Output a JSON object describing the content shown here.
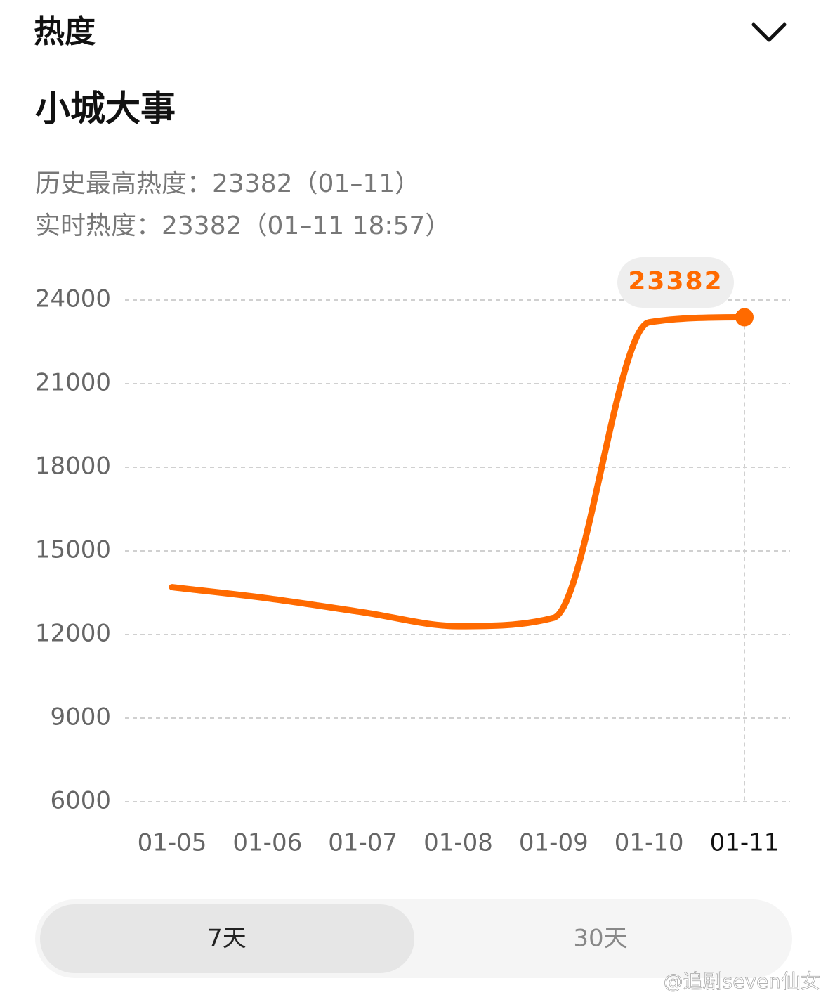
{
  "header": {
    "title": "热度"
  },
  "topic": {
    "title": "小城大事",
    "record_line": "历史最高热度：23382（01–11）",
    "realtime_line": "实时热度：23382（01–11 18:57）"
  },
  "chart_data": {
    "type": "line",
    "categories": [
      "01-05",
      "01-06",
      "01-07",
      "01-08",
      "01-09",
      "01-10",
      "01-11"
    ],
    "values": [
      13700,
      13300,
      12800,
      12300,
      12600,
      23200,
      23382
    ],
    "color": "#ff6a00",
    "ylim": [
      6000,
      24000
    ],
    "yticks": [
      6000,
      9000,
      12000,
      15000,
      18000,
      21000,
      24000
    ],
    "grid": true
  },
  "tabs": [
    "7天",
    "30天"
  ],
  "watermark": "@追剧seven仙女"
}
